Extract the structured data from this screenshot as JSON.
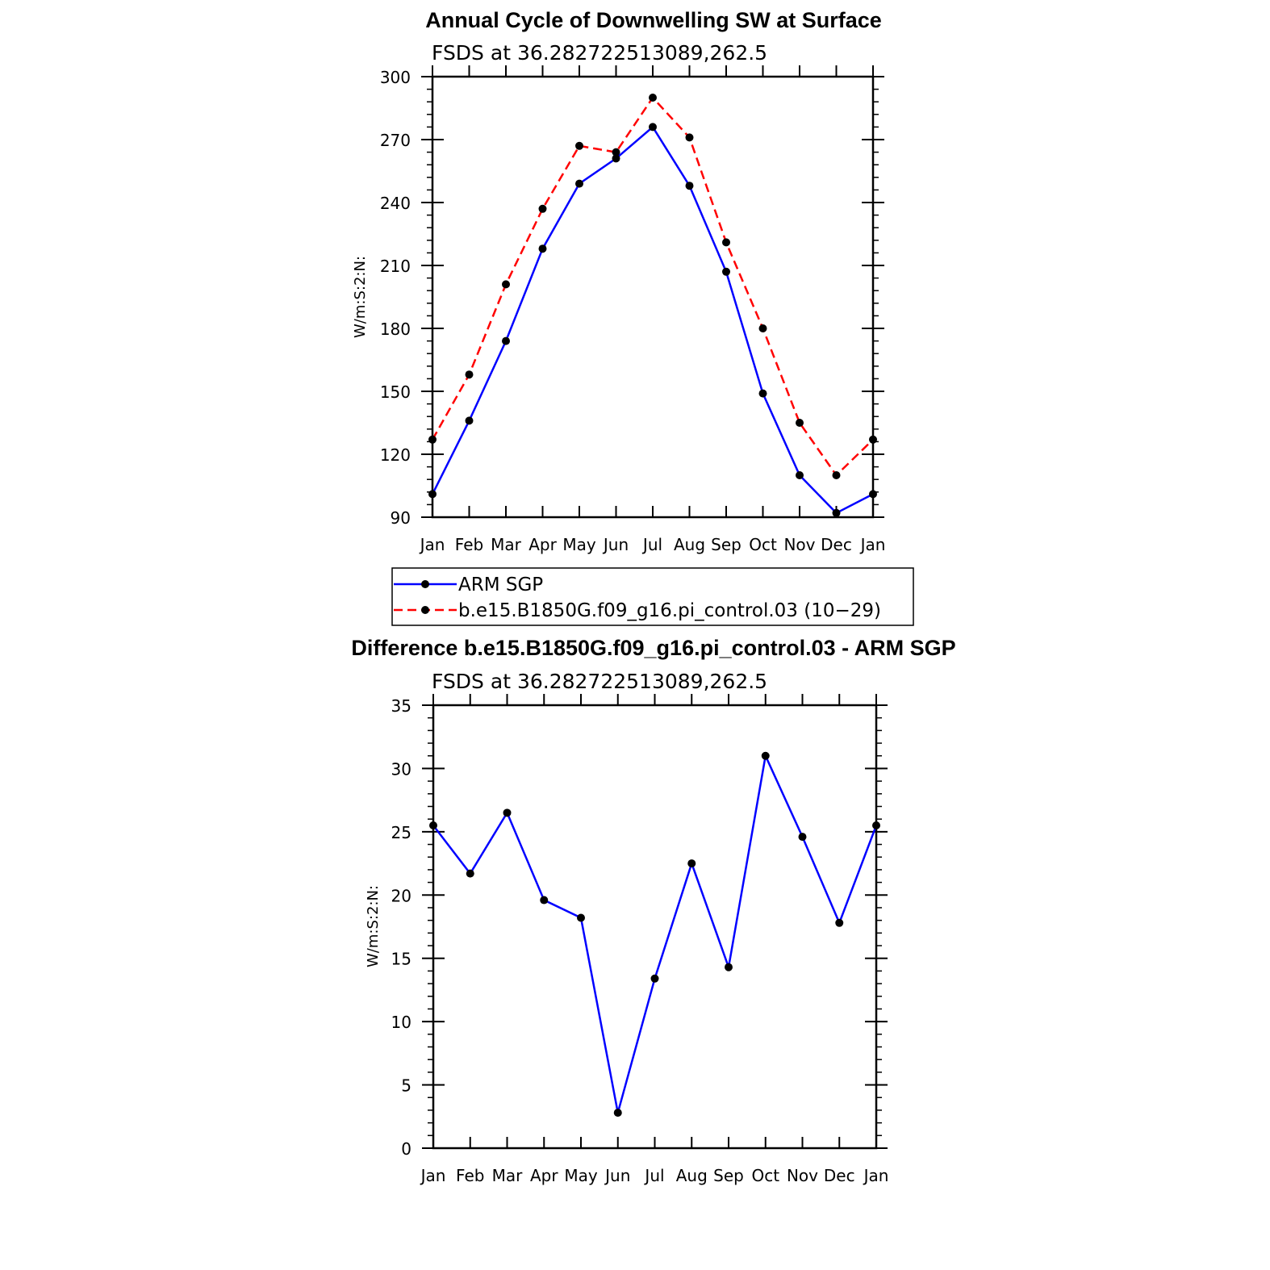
{
  "chart_data": [
    {
      "type": "line",
      "title": "Annual Cycle of Downwelling SW at Surface",
      "subtitle": "FSDS at 36.282722513089,262.5",
      "ylabel": "W/m:S:2:N:",
      "xlabel": "",
      "categories": [
        "Jan",
        "Feb",
        "Mar",
        "Apr",
        "May",
        "Jun",
        "Jul",
        "Aug",
        "Sep",
        "Oct",
        "Nov",
        "Dec",
        "Jan"
      ],
      "ylim": [
        90,
        300
      ],
      "yticks": [
        90,
        120,
        150,
        180,
        210,
        240,
        270,
        300
      ],
      "series": [
        {
          "name": "ARM SGP",
          "color": "#0000ff",
          "dash": "solid",
          "values": [
            101,
            136,
            174,
            218,
            249,
            261,
            276,
            248,
            207,
            149,
            110,
            92,
            101
          ]
        },
        {
          "name": "b.e15.B1850G.f09_g16.pi_control.03 (10−29)",
          "color": "#ff0000",
          "dash": "dashed",
          "values": [
            127,
            158,
            201,
            237,
            267,
            264,
            290,
            271,
            221,
            180,
            135,
            110,
            127
          ]
        }
      ],
      "legend": "below"
    },
    {
      "type": "line",
      "title": "Difference b.e15.B1850G.f09_g16.pi_control.03 - ARM SGP",
      "subtitle": "FSDS at 36.282722513089,262.5",
      "ylabel": "W/m:S:2:N:",
      "xlabel": "",
      "categories": [
        "Jan",
        "Feb",
        "Mar",
        "Apr",
        "May",
        "Jun",
        "Jul",
        "Aug",
        "Sep",
        "Oct",
        "Nov",
        "Dec",
        "Jan"
      ],
      "ylim": [
        0,
        35
      ],
      "yticks": [
        0,
        5,
        10,
        15,
        20,
        25,
        30,
        35
      ],
      "series": [
        {
          "color": "#0000ff",
          "dash": "solid",
          "values": [
            25.5,
            21.7,
            26.5,
            19.6,
            18.2,
            2.8,
            13.4,
            22.5,
            14.3,
            31.0,
            24.6,
            17.8,
            25.5
          ]
        }
      ]
    }
  ]
}
